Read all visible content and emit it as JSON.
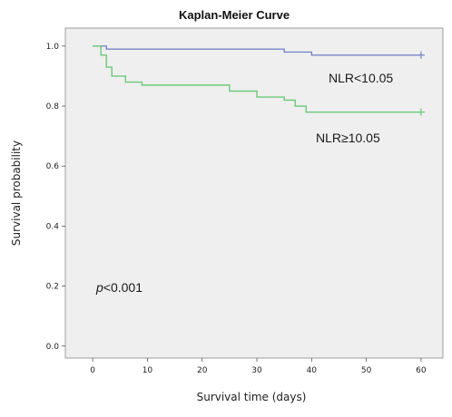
{
  "chart_data": {
    "type": "line",
    "title": "Kaplan-Meier Curve",
    "xlabel": "Survival time (days)",
    "ylabel": "Survival probability",
    "xlim": [
      -5,
      64
    ],
    "ylim": [
      -0.04,
      1.06
    ],
    "xticks": [
      0,
      10,
      20,
      30,
      40,
      50,
      60
    ],
    "yticks": [
      0.0,
      0.2,
      0.4,
      0.6,
      0.8,
      1.0
    ],
    "xtick_labels": [
      "0",
      "10",
      "20",
      "30",
      "40",
      "50",
      "60"
    ],
    "ytick_labels": [
      "0.0",
      "0.2",
      "0.4",
      "0.6",
      "0.8",
      "1.0"
    ],
    "grid": false,
    "background_color": "#efefef",
    "series": [
      {
        "name": "NLR<10.05",
        "color": "#7a86c8",
        "step_x": [
          0,
          2.5,
          35,
          40,
          60
        ],
        "step_y": [
          1.0,
          0.99,
          0.98,
          0.97,
          0.97
        ],
        "censor_x": [
          60
        ],
        "censor_y": [
          0.97
        ]
      },
      {
        "name": "NLR≥10.05",
        "color": "#6cc97a",
        "step_x": [
          0,
          1.5,
          2.5,
          3.5,
          6,
          9,
          25,
          30,
          35,
          37,
          39,
          60
        ],
        "step_y": [
          1.0,
          0.97,
          0.93,
          0.9,
          0.88,
          0.87,
          0.85,
          0.83,
          0.82,
          0.8,
          0.78,
          0.78
        ],
        "censor_x": [
          60
        ],
        "censor_y": [
          0.78
        ]
      }
    ],
    "annotations": {
      "p_symbol": "p",
      "p_rest": "<0.001"
    }
  }
}
